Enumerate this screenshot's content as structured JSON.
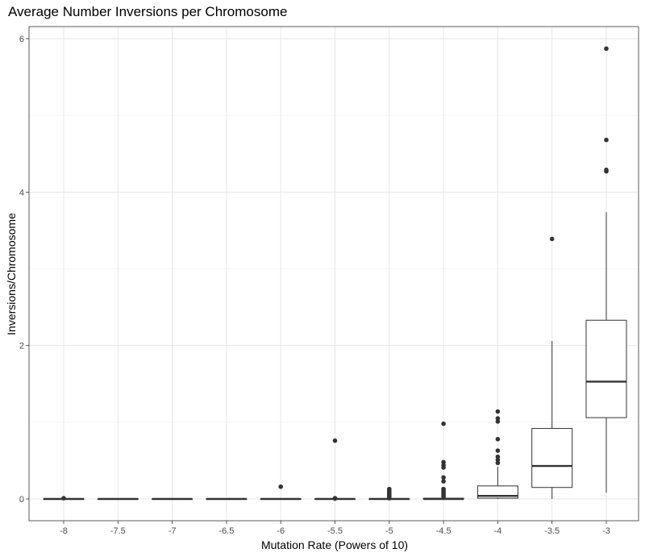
{
  "chart_data": {
    "type": "box",
    "title": "Average Number Inversions per Chromosome",
    "xlabel": "Mutation Rate (Powers of 10)",
    "ylabel": "Inversions/Chromosome",
    "categories": [
      "-8",
      "-7.5",
      "-7",
      "-6.5",
      "-6",
      "-5.5",
      "-5",
      "-4.5",
      "-4",
      "-3.5",
      "-3"
    ],
    "ylim": [
      -0.3,
      6.1
    ],
    "y_ticks": [
      0,
      2,
      4,
      6
    ],
    "grid": true,
    "boxes": [
      {
        "category": "-8",
        "min": 0,
        "q1": 0,
        "median": 0,
        "q3": 0,
        "max": 0,
        "outliers": [
          0.01
        ]
      },
      {
        "category": "-7.5",
        "min": 0,
        "q1": 0,
        "median": 0,
        "q3": 0,
        "max": 0,
        "outliers": []
      },
      {
        "category": "-7",
        "min": 0,
        "q1": 0,
        "median": 0,
        "q3": 0,
        "max": 0,
        "outliers": []
      },
      {
        "category": "-6.5",
        "min": 0,
        "q1": 0,
        "median": 0,
        "q3": 0,
        "max": 0,
        "outliers": []
      },
      {
        "category": "-6",
        "min": 0,
        "q1": 0,
        "median": 0,
        "q3": 0,
        "max": 0,
        "outliers": [
          0.16
        ]
      },
      {
        "category": "-5.5",
        "min": 0,
        "q1": 0,
        "median": 0,
        "q3": 0,
        "max": 0,
        "outliers": [
          0.76,
          0.01,
          0.005
        ]
      },
      {
        "category": "-5",
        "min": 0,
        "q1": 0,
        "median": 0,
        "q3": 0,
        "max": 0,
        "outliers": [
          0.13,
          0.11,
          0.09,
          0.07,
          0.05,
          0.03,
          0.01
        ]
      },
      {
        "category": "-4.5",
        "min": 0,
        "q1": 0,
        "median": 0,
        "q3": 0.01,
        "max": 0.02,
        "outliers": [
          0.98,
          0.48,
          0.44,
          0.41,
          0.28,
          0.23,
          0.13,
          0.11,
          0.09,
          0.07,
          0.05,
          0.03
        ]
      },
      {
        "category": "-4",
        "min": 0,
        "q1": 0.01,
        "median": 0.04,
        "q3": 0.17,
        "max": 0.42,
        "outliers": [
          1.14,
          1.05,
          1.01,
          0.78,
          0.63,
          0.55,
          0.51,
          0.47
        ]
      },
      {
        "category": "-3.5",
        "min": 0,
        "q1": 0.15,
        "median": 0.43,
        "q3": 0.92,
        "max": 2.06,
        "outliers": [
          3.39
        ]
      },
      {
        "category": "-3",
        "min": 0.08,
        "q1": 1.06,
        "median": 1.53,
        "q3": 2.33,
        "max": 3.74,
        "outliers": [
          5.87,
          4.68,
          4.29,
          4.27
        ]
      }
    ]
  }
}
